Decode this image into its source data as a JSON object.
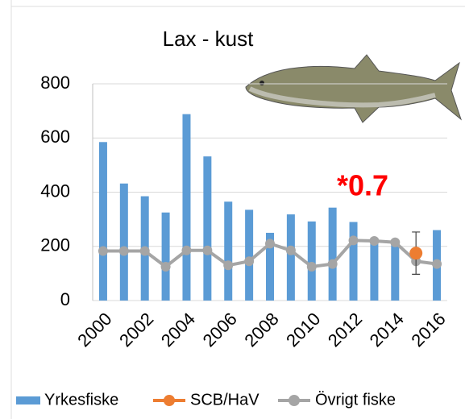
{
  "chart_data": {
    "type": "bar",
    "title": "Lax - kust",
    "categories": [
      "2000",
      null,
      "2002",
      null,
      "2004",
      null,
      "2006",
      null,
      "2008",
      null,
      "2010",
      null,
      "2012",
      null,
      "2014",
      null,
      "2016"
    ],
    "series": [
      {
        "name": "Yrkesfiske",
        "type": "bar",
        "color": "#5b9bd5",
        "values": [
          585,
          432,
          385,
          325,
          688,
          532,
          365,
          335,
          250,
          318,
          292,
          343,
          290,
          220,
          215,
          null,
          260
        ]
      },
      {
        "name": "SCB/HaV",
        "type": "scatter",
        "color": "#ed7d31",
        "values": [
          null,
          null,
          null,
          null,
          null,
          null,
          null,
          null,
          null,
          null,
          null,
          null,
          null,
          null,
          null,
          175,
          null
        ],
        "errors": [
          null,
          null,
          null,
          null,
          null,
          null,
          null,
          null,
          null,
          null,
          null,
          null,
          null,
          null,
          null,
          78,
          null
        ]
      },
      {
        "name": "Övrigt fiske",
        "type": "line",
        "color": "#a5a5a5",
        "values": [
          183,
          183,
          183,
          125,
          185,
          185,
          130,
          145,
          210,
          185,
          125,
          135,
          222,
          220,
          215,
          145,
          135
        ]
      }
    ],
    "annotation": "*0.7",
    "annotation_color": "#ff0000",
    "ylim": [
      0,
      800
    ],
    "yticks": [
      0,
      200,
      400,
      600,
      800
    ],
    "grid": true,
    "legend": "bottom"
  }
}
